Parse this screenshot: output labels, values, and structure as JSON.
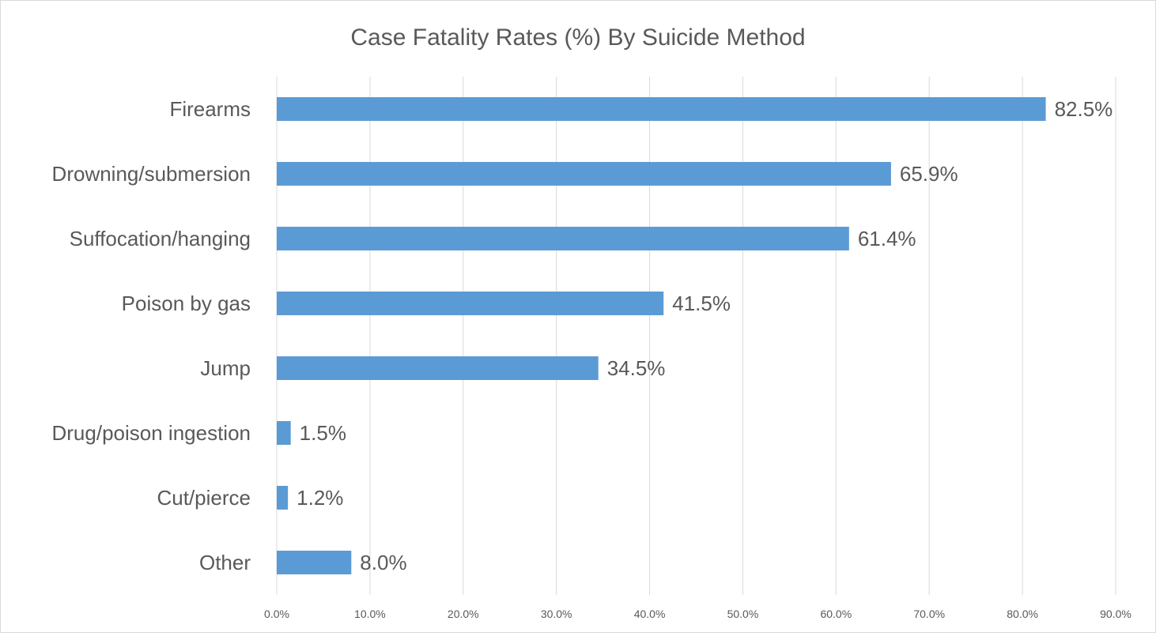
{
  "chart_data": {
    "type": "bar",
    "orientation": "horizontal",
    "title": "Case Fatality Rates (%) By Suicide Method",
    "xlabel": "",
    "ylabel": "",
    "categories": [
      "Firearms",
      "Drowning/submersion",
      "Suffocation/hanging",
      "Poison by gas",
      "Jump",
      "Drug/poison ingestion",
      "Cut/pierce",
      "Other"
    ],
    "values": [
      82.5,
      65.9,
      61.4,
      41.5,
      34.5,
      1.5,
      1.2,
      8.0
    ],
    "data_labels": [
      "82.5%",
      "65.9%",
      "61.4%",
      "41.5%",
      "34.5%",
      "1.5%",
      "1.2%",
      "8.0%"
    ],
    "xlim": [
      0,
      90
    ],
    "x_ticks": [
      0,
      10,
      20,
      30,
      40,
      50,
      60,
      70,
      80,
      90
    ],
    "x_tick_labels": [
      "0.0%",
      "10.0%",
      "20.0%",
      "30.0%",
      "40.0%",
      "50.0%",
      "60.0%",
      "70.0%",
      "80.0%",
      "90.0%"
    ],
    "grid": "vertical",
    "legend": "none",
    "bar_color": "#5B9BD5",
    "grid_color": "#D9D9D9",
    "text_color": "#595959"
  }
}
